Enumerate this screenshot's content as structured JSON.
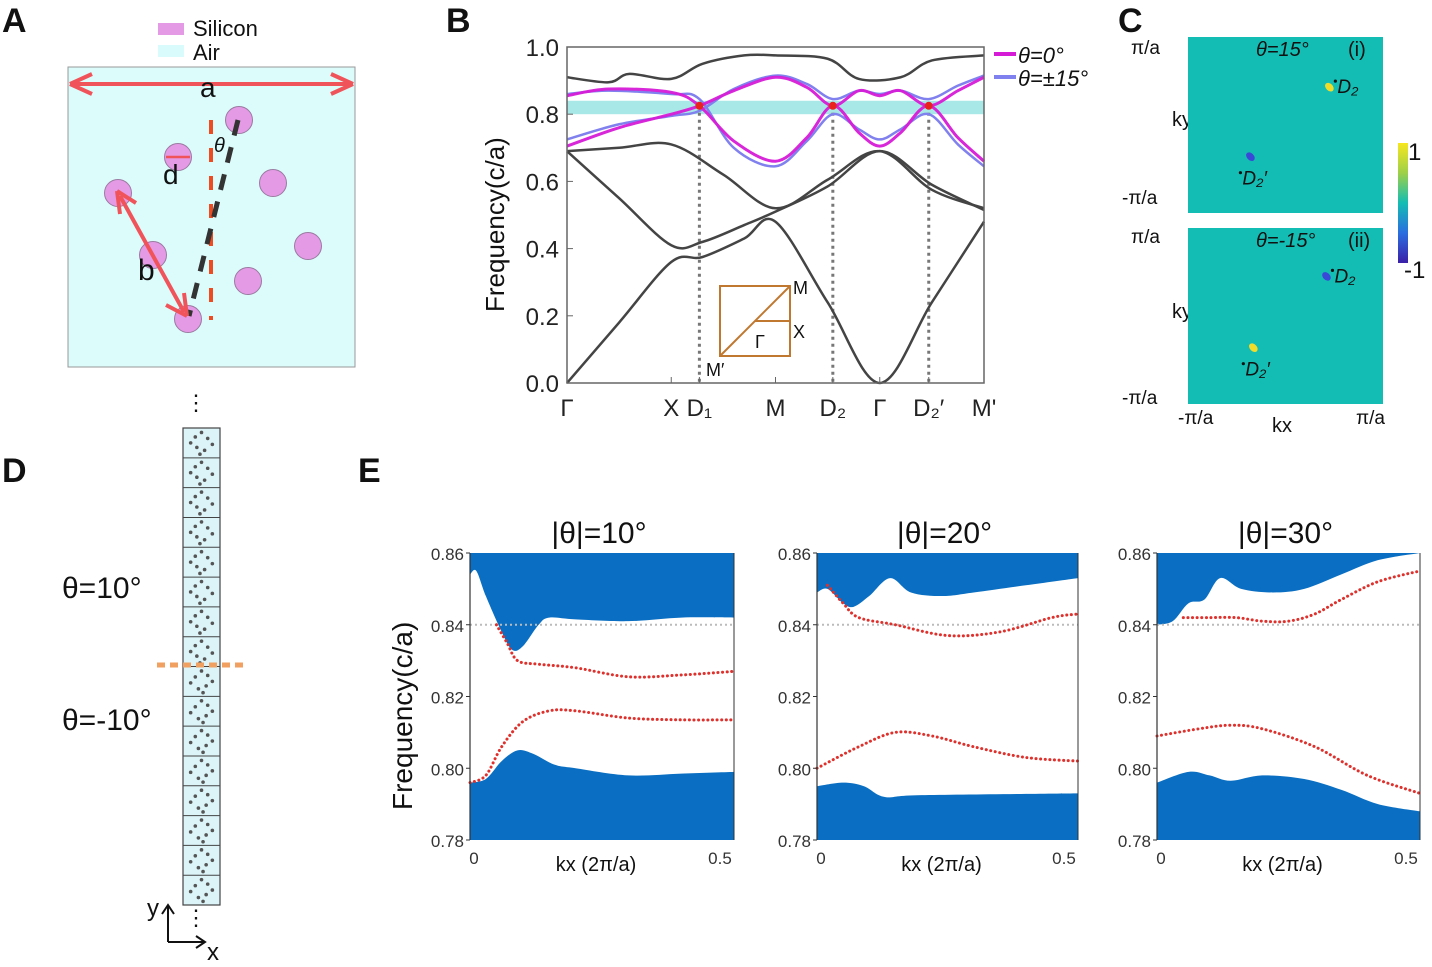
{
  "panel_labels": {
    "a": "A",
    "b": "B",
    "c": "C",
    "d": "D",
    "e": "E"
  },
  "panel_a": {
    "legend": [
      {
        "label": "Silicon",
        "color": "#e59ae6"
      },
      {
        "label": "Air",
        "color": "#d9fbfb"
      }
    ],
    "dimension_labels": {
      "a": "a",
      "b": "b",
      "d": "d",
      "theta": "θ"
    },
    "colors": {
      "arrow": "#f0545a",
      "axis_dash": "#f04a20",
      "rotated_axis": "#333333"
    }
  },
  "panel_d": {
    "upper_label": "θ=10°",
    "lower_label": "θ=-10°",
    "axis_x": "x",
    "axis_y": "y",
    "cell_count": 16,
    "interface_color": "#f0a060"
  },
  "chart_data": [
    {
      "panel": "B",
      "type": "line",
      "ylabel": "Frequency(c/a)",
      "ylim": [
        0,
        1.0
      ],
      "yticks": [
        "0.0",
        "0.2",
        "0.4",
        "0.6",
        "0.8",
        "1.0"
      ],
      "xticks": [
        {
          "k": 0,
          "label": "Γ"
        },
        {
          "k": 1,
          "label": "X"
        },
        {
          "k": 1.27,
          "label": "D₁"
        },
        {
          "k": 2,
          "label": "M"
        },
        {
          "k": 2.55,
          "label": "D₂"
        },
        {
          "k": 3,
          "label": "Γ"
        },
        {
          "k": 3.47,
          "label": "D₂′"
        },
        {
          "k": 4,
          "label": "M'"
        }
      ],
      "highlight_band": {
        "from": 0.8,
        "to": 0.84,
        "color": "#a8e8e6"
      },
      "dirac_points": [
        {
          "k": 1.27,
          "f": 0.825
        },
        {
          "k": 2.55,
          "f": 0.825
        },
        {
          "k": 3.47,
          "f": 0.825
        }
      ],
      "dirac_color": "#e8231c",
      "legend_position": "top-right",
      "other_bands": [
        [
          [
            0,
            0
          ],
          [
            0.5,
            0.18
          ],
          [
            1,
            0.36
          ],
          [
            1.3,
            0.375
          ],
          [
            1.7,
            0.43
          ],
          [
            2,
            0.48
          ],
          [
            2.5,
            0.24
          ],
          [
            3,
            0
          ],
          [
            3.5,
            0.24
          ],
          [
            4,
            0.48
          ]
        ],
        [
          [
            0,
            0.69
          ],
          [
            0.5,
            0.55
          ],
          [
            1,
            0.41
          ],
          [
            1.3,
            0.42
          ],
          [
            1.7,
            0.47
          ],
          [
            2,
            0.51
          ],
          [
            2.5,
            0.585
          ],
          [
            3,
            0.69
          ],
          [
            3.5,
            0.59
          ],
          [
            4,
            0.515
          ]
        ],
        [
          [
            0,
            0.69
          ],
          [
            0.5,
            0.7
          ],
          [
            1,
            0.71
          ],
          [
            1.5,
            0.62
          ],
          [
            2,
            0.52
          ],
          [
            2.5,
            0.605
          ],
          [
            3,
            0.69
          ],
          [
            3.5,
            0.575
          ],
          [
            4,
            0.52
          ]
        ],
        [
          [
            0,
            0.91
          ],
          [
            0.4,
            0.895
          ],
          [
            0.6,
            0.92
          ],
          [
            1,
            0.905
          ],
          [
            1.3,
            0.95
          ],
          [
            1.7,
            0.975
          ],
          [
            2,
            0.975
          ],
          [
            2.5,
            0.965
          ],
          [
            2.8,
            0.905
          ],
          [
            3.2,
            0.91
          ],
          [
            3.5,
            0.96
          ],
          [
            4,
            0.975
          ]
        ]
      ],
      "other_band_color": "#444444",
      "series": [
        {
          "name": "θ=0°",
          "color": "#d61bd6",
          "bands": [
            [
              [
                0,
                0.705
              ],
              [
                0.5,
                0.76
              ],
              [
                1,
                0.8
              ],
              [
                1.27,
                0.825
              ],
              [
                1.6,
                0.87
              ],
              [
                2,
                0.91
              ],
              [
                2.3,
                0.88
              ],
              [
                2.55,
                0.825
              ],
              [
                2.8,
                0.87
              ],
              [
                3,
                0.855
              ],
              [
                3.2,
                0.87
              ],
              [
                3.47,
                0.825
              ],
              [
                3.75,
                0.87
              ],
              [
                4,
                0.91
              ]
            ],
            [
              [
                0,
                0.855
              ],
              [
                0.4,
                0.875
              ],
              [
                1,
                0.865
              ],
              [
                1.27,
                0.825
              ],
              [
                1.6,
                0.72
              ],
              [
                2,
                0.66
              ],
              [
                2.3,
                0.73
              ],
              [
                2.55,
                0.825
              ],
              [
                2.8,
                0.745
              ],
              [
                3,
                0.705
              ],
              [
                3.2,
                0.745
              ],
              [
                3.47,
                0.825
              ],
              [
                3.75,
                0.73
              ],
              [
                4,
                0.66
              ]
            ]
          ]
        },
        {
          "name": "θ=±15°",
          "color": "#8080ee",
          "bands": [
            [
              [
                0,
                0.725
              ],
              [
                0.5,
                0.77
              ],
              [
                1,
                0.795
              ],
              [
                1.27,
                0.81
              ],
              [
                1.6,
                0.875
              ],
              [
                2,
                0.915
              ],
              [
                2.3,
                0.89
              ],
              [
                2.55,
                0.845
              ],
              [
                2.8,
                0.87
              ],
              [
                3,
                0.86
              ],
              [
                3.2,
                0.87
              ],
              [
                3.47,
                0.845
              ],
              [
                3.75,
                0.885
              ],
              [
                4,
                0.915
              ]
            ],
            [
              [
                0,
                0.86
              ],
              [
                0.4,
                0.87
              ],
              [
                1,
                0.86
              ],
              [
                1.27,
                0.845
              ],
              [
                1.6,
                0.7
              ],
              [
                2,
                0.645
              ],
              [
                2.3,
                0.72
              ],
              [
                2.55,
                0.8
              ],
              [
                2.8,
                0.755
              ],
              [
                3,
                0.725
              ],
              [
                3.2,
                0.755
              ],
              [
                3.47,
                0.8
              ],
              [
                3.75,
                0.71
              ],
              [
                4,
                0.645
              ]
            ]
          ]
        }
      ],
      "inset": {
        "labels": [
          "M",
          "X",
          "Γ",
          "M′"
        ],
        "color": "#c07830"
      }
    },
    {
      "panel": "C",
      "type": "heatmap",
      "xlabel": "kx",
      "ylabel": "ky",
      "tick_min": "-π/a",
      "tick_max": "π/a",
      "colorbar": {
        "min": -1,
        "max": 1,
        "min_label": "-1",
        "max_label": "1"
      },
      "background_color": "#14bdb4",
      "subplots": [
        {
          "title": "θ=15°",
          "tag": "(i)",
          "spots": [
            {
              "label": "D₂",
              "kx": 0.45,
              "ky": 0.43,
              "value": 1
            },
            {
              "label": "D₂′",
              "kx": -0.36,
              "ky": -0.36,
              "value": -1
            }
          ]
        },
        {
          "title": "θ=-15°",
          "tag": "(ii)",
          "spots": [
            {
              "label": "D₂",
              "kx": 0.42,
              "ky": 0.45,
              "value": -1
            },
            {
              "label": "D₂′",
              "kx": -0.33,
              "ky": -0.36,
              "value": 1
            }
          ]
        }
      ]
    },
    {
      "panel": "E1",
      "type": "area",
      "title": "|θ|=10°",
      "xlabel": "kx (2π/a)",
      "ylabel": "Frequency(c/a)",
      "xlim": [
        0,
        0.5
      ],
      "ylim": [
        0.78,
        0.86
      ],
      "yticks": [
        "0.78",
        "0.80",
        "0.82",
        "0.84",
        "0.86"
      ],
      "xticks": [
        "0",
        "0.5"
      ],
      "reference_line": 0.84,
      "upper_continuum_edge": [
        [
          0,
          0.854
        ],
        [
          0.012,
          0.855
        ],
        [
          0.03,
          0.848
        ],
        [
          0.06,
          0.838
        ],
        [
          0.08,
          0.833
        ],
        [
          0.1,
          0.834
        ],
        [
          0.13,
          0.84
        ],
        [
          0.15,
          0.842
        ],
        [
          0.2,
          0.8415
        ],
        [
          0.3,
          0.841
        ],
        [
          0.4,
          0.842
        ],
        [
          0.5,
          0.842
        ]
      ],
      "lower_continuum_edge": [
        [
          0,
          0.796
        ],
        [
          0.03,
          0.797
        ],
        [
          0.06,
          0.802
        ],
        [
          0.09,
          0.805
        ],
        [
          0.12,
          0.804
        ],
        [
          0.16,
          0.801
        ],
        [
          0.2,
          0.8
        ],
        [
          0.3,
          0.798
        ],
        [
          0.4,
          0.7985
        ],
        [
          0.5,
          0.799
        ]
      ],
      "edge_states": [
        [
          [
            0.05,
            0.84
          ],
          [
            0.07,
            0.835
          ],
          [
            0.09,
            0.83
          ],
          [
            0.13,
            0.829
          ],
          [
            0.2,
            0.828
          ],
          [
            0.3,
            0.8255
          ],
          [
            0.4,
            0.826
          ],
          [
            0.5,
            0.827
          ]
        ],
        [
          [
            0,
            0.796
          ],
          [
            0.03,
            0.798
          ],
          [
            0.06,
            0.806
          ],
          [
            0.1,
            0.813
          ],
          [
            0.15,
            0.816
          ],
          [
            0.2,
            0.816
          ],
          [
            0.3,
            0.814
          ],
          [
            0.4,
            0.8135
          ],
          [
            0.5,
            0.8135
          ]
        ]
      ]
    },
    {
      "panel": "E2",
      "type": "area",
      "title": "|θ|=20°",
      "xlabel": "kx (2π/a)",
      "xlim": [
        0,
        0.5
      ],
      "ylim": [
        0.78,
        0.86
      ],
      "yticks": [
        "0.78",
        "0.80",
        "0.82",
        "0.84",
        "0.86"
      ],
      "xticks": [
        "0",
        "0.5"
      ],
      "reference_line": 0.84,
      "upper_continuum_edge": [
        [
          0,
          0.849
        ],
        [
          0.02,
          0.85
        ],
        [
          0.05,
          0.846
        ],
        [
          0.07,
          0.845
        ],
        [
          0.1,
          0.848
        ],
        [
          0.14,
          0.853
        ],
        [
          0.18,
          0.849
        ],
        [
          0.24,
          0.848
        ],
        [
          0.3,
          0.849
        ],
        [
          0.4,
          0.851
        ],
        [
          0.5,
          0.853
        ]
      ],
      "lower_continuum_edge": [
        [
          0,
          0.795
        ],
        [
          0.05,
          0.796
        ],
        [
          0.09,
          0.795
        ],
        [
          0.13,
          0.792
        ],
        [
          0.2,
          0.7925
        ],
        [
          0.5,
          0.793
        ]
      ],
      "edge_states": [
        [
          [
            0.02,
            0.851
          ],
          [
            0.05,
            0.846
          ],
          [
            0.08,
            0.842
          ],
          [
            0.15,
            0.84
          ],
          [
            0.25,
            0.837
          ],
          [
            0.35,
            0.838
          ],
          [
            0.45,
            0.842
          ],
          [
            0.5,
            0.843
          ]
        ],
        [
          [
            0,
            0.8
          ],
          [
            0.08,
            0.806
          ],
          [
            0.15,
            0.81
          ],
          [
            0.22,
            0.809
          ],
          [
            0.3,
            0.806
          ],
          [
            0.4,
            0.803
          ],
          [
            0.5,
            0.802
          ]
        ]
      ]
    },
    {
      "panel": "E3",
      "type": "area",
      "title": "|θ|=30°",
      "xlabel": "kx (2π/a)",
      "xlim": [
        0,
        0.5
      ],
      "ylim": [
        0.78,
        0.86
      ],
      "yticks": [
        "0.78",
        "0.80",
        "0.82",
        "0.84",
        "0.86"
      ],
      "xticks": [
        "0",
        "0.5"
      ],
      "reference_line": 0.84,
      "upper_continuum_edge": [
        [
          0,
          0.84
        ],
        [
          0.03,
          0.841
        ],
        [
          0.06,
          0.846
        ],
        [
          0.09,
          0.847
        ],
        [
          0.12,
          0.853
        ],
        [
          0.16,
          0.85
        ],
        [
          0.22,
          0.849
        ],
        [
          0.28,
          0.85
        ],
        [
          0.35,
          0.854
        ],
        [
          0.42,
          0.858
        ],
        [
          0.5,
          0.86
        ]
      ],
      "lower_continuum_edge": [
        [
          0,
          0.796
        ],
        [
          0.06,
          0.799
        ],
        [
          0.1,
          0.798
        ],
        [
          0.14,
          0.7965
        ],
        [
          0.2,
          0.798
        ],
        [
          0.28,
          0.797
        ],
        [
          0.35,
          0.794
        ],
        [
          0.42,
          0.79
        ],
        [
          0.5,
          0.788
        ]
      ],
      "edge_states": [
        [
          [
            0.05,
            0.842
          ],
          [
            0.1,
            0.842
          ],
          [
            0.15,
            0.842
          ],
          [
            0.2,
            0.841
          ],
          [
            0.25,
            0.841
          ],
          [
            0.3,
            0.843
          ],
          [
            0.35,
            0.847
          ],
          [
            0.42,
            0.852
          ],
          [
            0.5,
            0.855
          ]
        ],
        [
          [
            0,
            0.809
          ],
          [
            0.08,
            0.811
          ],
          [
            0.14,
            0.812
          ],
          [
            0.2,
            0.811
          ],
          [
            0.3,
            0.806
          ],
          [
            0.4,
            0.798
          ],
          [
            0.5,
            0.793
          ]
        ]
      ]
    }
  ],
  "colors": {
    "continuum": "#0a6fc2",
    "edge_state": "#e0302c",
    "reference_line": "#bbbbbb"
  }
}
